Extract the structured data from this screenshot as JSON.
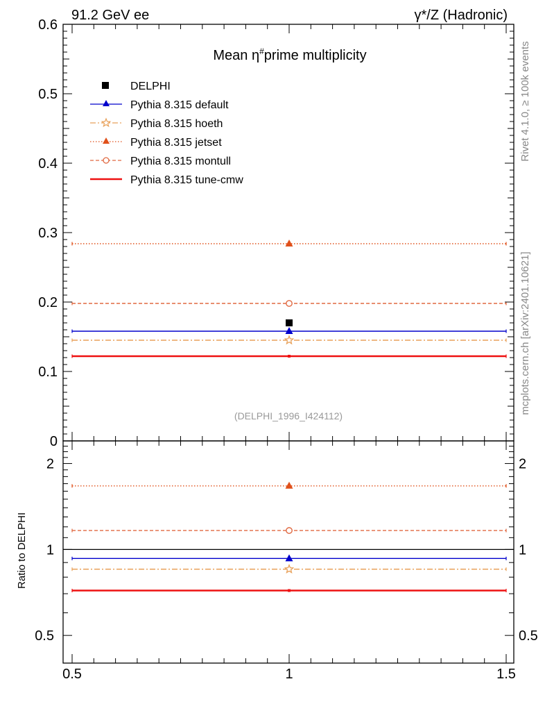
{
  "header": {
    "left": "91.2 GeV ee",
    "right": "γ*/Z (Hadronic)"
  },
  "side_labels": {
    "rivet": "Rivet 4.1.0, ≥ 100k events",
    "mcplots": "mcplots.cern.ch [arXiv:2401.10621]"
  },
  "colors": {
    "data": "#000000",
    "default": "#0000cc",
    "hoeth": "#e8a15a",
    "jetset": "#e0501a",
    "montull": "#e06840",
    "cmw": "#ee1111"
  },
  "chart_data": [
    {
      "type": "line",
      "panel": "main",
      "title_prefix": "Mean ",
      "title_symbol": "η",
      "title_sup": "#",
      "title_suffix": "prime multiplicity",
      "analysis_id": "(DELPHI_1996_I424112)",
      "xlim": [
        0.5,
        1.5
      ],
      "ylim": [
        0.0,
        0.6
      ],
      "yticks": [
        0.1,
        0.2,
        0.3,
        0.4,
        0.5,
        0.6
      ],
      "ytick_labels": [
        "0.1",
        "0.2",
        "0.3",
        "0.4",
        "0.5",
        "0.6"
      ],
      "ytick_zero_label": "0",
      "data": {
        "name": "DELPHI",
        "x": 1.0,
        "y": 0.17
      },
      "series": [
        {
          "key": "default",
          "name": "Pythia 8.315 default",
          "value": 0.158,
          "style": "solid",
          "marker": "triangle"
        },
        {
          "key": "hoeth",
          "name": "Pythia 8.315 hoeth",
          "value": 0.145,
          "style": "dashdot",
          "marker": "star"
        },
        {
          "key": "jetset",
          "name": "Pythia 8.315 jetset",
          "value": 0.284,
          "style": "dotted",
          "marker": "triangle"
        },
        {
          "key": "montull",
          "name": "Pythia 8.315 montull",
          "value": 0.198,
          "style": "dashed",
          "marker": "circle-open"
        },
        {
          "key": "cmw",
          "name": "Pythia 8.315 tune-cmw",
          "value": 0.122,
          "style": "thick",
          "marker": "none"
        }
      ]
    },
    {
      "type": "line",
      "panel": "ratio",
      "ylabel": "Ratio to DELPHI",
      "yscale": "log",
      "xlim": [
        0.5,
        1.5
      ],
      "ylim": [
        0.4,
        2.4
      ],
      "yticks": [
        0.5,
        1,
        2
      ],
      "ytick_labels": [
        "0.5",
        "1",
        "2"
      ],
      "xticks": [
        0.5,
        1,
        1.5
      ],
      "xtick_labels": [
        "0.5",
        "1",
        "1.5"
      ],
      "reference": 1.0,
      "series": [
        {
          "key": "default",
          "value": 0.93
        },
        {
          "key": "hoeth",
          "value": 0.853
        },
        {
          "key": "jetset",
          "value": 1.67
        },
        {
          "key": "montull",
          "value": 1.165
        },
        {
          "key": "cmw",
          "value": 0.718
        }
      ]
    }
  ]
}
